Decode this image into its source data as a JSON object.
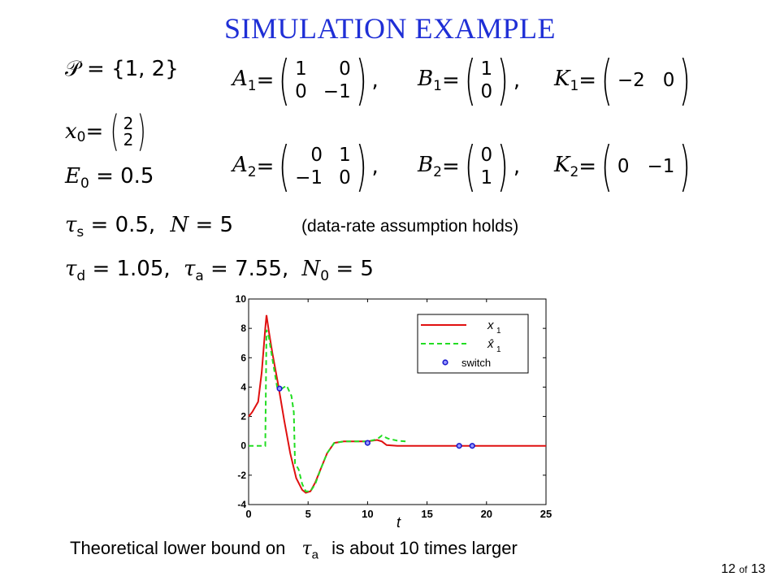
{
  "title": "SIMULATION EXAMPLE",
  "left_equations": {
    "P_lhs": "𝒫 =",
    "P_set": "{1, 2}",
    "x0_lhs": "x",
    "x0_sub": "0",
    "x0_eq": " =",
    "x0_vec": [
      "2",
      "2"
    ],
    "E0_lhs": "E",
    "E0_sub": "0",
    "E0_rhs": " = 0.5",
    "taus_sym": "τ",
    "taus_sub": "s",
    "taus_rhs": " = 0.5,",
    "N_sym": "N",
    "N_rhs": " = 5",
    "assumption_note": "(data-rate assumption holds)",
    "taud_sym": "τ",
    "taud_sub": "d",
    "taud_rhs": " = 1.05,",
    "taua_sym": "τ",
    "taua_sub": "a",
    "taua_rhs": " = 7.55,",
    "N0_sym": "N",
    "N0_sub": "0",
    "N0_rhs": " = 5"
  },
  "matrices": {
    "A1": {
      "name": "A",
      "sub": "1",
      "cells": [
        "1",
        "0",
        "0",
        "−1"
      ]
    },
    "B1": {
      "name": "B",
      "sub": "1",
      "cells": [
        "1",
        "0"
      ]
    },
    "K1": {
      "name": "K",
      "sub": "1",
      "cells": [
        "−2",
        "0"
      ]
    },
    "A2": {
      "name": "A",
      "sub": "2",
      "cells": [
        "0",
        "1",
        "−1",
        "0"
      ]
    },
    "B2": {
      "name": "B",
      "sub": "2",
      "cells": [
        "0",
        "1"
      ]
    },
    "K2": {
      "name": "K",
      "sub": "2",
      "cells": [
        "0",
        "−1"
      ]
    },
    "eq": " =",
    "comma": ","
  },
  "bottom_text": {
    "before": "Theoretical lower bound on ",
    "sym": "τ",
    "sub": "a",
    "after": " is about 10 times larger"
  },
  "page": {
    "current": "12",
    "of": "of",
    "total": "13"
  },
  "chart_data": {
    "type": "line",
    "title": "",
    "xlabel": "t",
    "ylabel": "",
    "xlim": [
      0,
      25
    ],
    "ylim": [
      -4,
      10
    ],
    "xticks": [
      0,
      5,
      10,
      15,
      20,
      25
    ],
    "yticks": [
      -4,
      -2,
      0,
      2,
      4,
      6,
      8,
      10
    ],
    "legend_position": "top-right",
    "series": [
      {
        "name": "x1",
        "legend_label": "x",
        "legend_sub": "1",
        "style": "solid",
        "color": "#e01010",
        "points": [
          [
            0,
            2
          ],
          [
            0.3,
            2.3
          ],
          [
            0.8,
            3
          ],
          [
            1.1,
            5
          ],
          [
            1.4,
            8
          ],
          [
            1.5,
            8.9
          ],
          [
            1.7,
            7.8
          ],
          [
            2.0,
            6.3
          ],
          [
            2.5,
            4.1
          ],
          [
            3.0,
            1.7
          ],
          [
            3.5,
            -0.5
          ],
          [
            4.0,
            -2.2
          ],
          [
            4.5,
            -3.0
          ],
          [
            4.8,
            -3.2
          ],
          [
            5.2,
            -3.1
          ],
          [
            5.6,
            -2.5
          ],
          [
            6.1,
            -1.5
          ],
          [
            6.6,
            -0.5
          ],
          [
            7.2,
            0.2
          ],
          [
            8.0,
            0.3
          ],
          [
            9.0,
            0.3
          ],
          [
            10.0,
            0.3
          ],
          [
            10.8,
            0.4
          ],
          [
            11.2,
            0.3
          ],
          [
            11.6,
            0.05
          ],
          [
            12.5,
            0
          ],
          [
            25,
            0
          ]
        ]
      },
      {
        "name": "x̂1",
        "legend_label": "x̂",
        "legend_sub": "1",
        "style": "dashed",
        "color": "#22dd22",
        "points": [
          [
            0,
            0
          ],
          [
            1.4,
            0
          ],
          [
            1.5,
            7.9
          ],
          [
            1.7,
            7.4
          ],
          [
            2.0,
            5.9
          ],
          [
            2.4,
            4.0
          ],
          [
            2.8,
            3.9
          ],
          [
            3.2,
            4.1
          ],
          [
            3.6,
            3.4
          ],
          [
            3.8,
            2.3
          ],
          [
            3.9,
            -1.2
          ],
          [
            4.2,
            -1.6
          ],
          [
            4.5,
            -2.6
          ],
          [
            4.8,
            -3.1
          ],
          [
            5.2,
            -3.1
          ],
          [
            5.6,
            -2.6
          ],
          [
            6.1,
            -1.5
          ],
          [
            6.6,
            -0.5
          ],
          [
            7.2,
            0.2
          ],
          [
            8.0,
            0.3
          ],
          [
            9.0,
            0.3
          ],
          [
            10.0,
            0.3
          ],
          [
            10.8,
            0.45
          ],
          [
            11.2,
            0.7
          ],
          [
            11.7,
            0.5
          ],
          [
            12.5,
            0.35
          ],
          [
            13.2,
            0.3
          ]
        ]
      },
      {
        "name": "switch",
        "legend_label": "switch",
        "style": "marker",
        "color": "#1a1acc",
        "points": [
          [
            2.6,
            3.9
          ],
          [
            10.0,
            0.2
          ],
          [
            17.7,
            0
          ],
          [
            18.8,
            0
          ]
        ]
      }
    ]
  }
}
